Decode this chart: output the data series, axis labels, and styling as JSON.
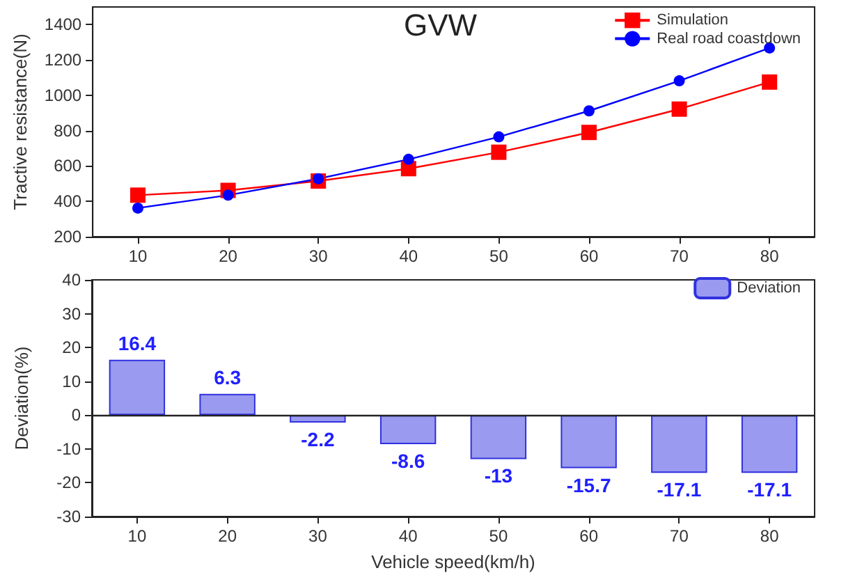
{
  "chart_data": [
    {
      "type": "line",
      "title": "GVW",
      "ylabel": "Tractive resistance(N)",
      "categories": [
        "10",
        "20",
        "30",
        "40",
        "50",
        "60",
        "70",
        "80"
      ],
      "ylim": [
        200,
        1500
      ],
      "yticks": [
        200,
        400,
        600,
        800,
        1000,
        1200,
        1400
      ],
      "grid": false,
      "legend": "top right",
      "line_style": "solid",
      "series": [
        {
          "name": "Simulation",
          "color": "#ff0000",
          "marker": "square",
          "values": [
            435,
            462,
            515,
            585,
            678,
            790,
            922,
            1075
          ]
        },
        {
          "name": "Real road coastdown",
          "color": "#0000ff",
          "marker": "circle",
          "values": [
            362,
            435,
            528,
            638,
            765,
            912,
            1082,
            1268
          ]
        }
      ]
    },
    {
      "type": "bar",
      "xlabel": "Vehicle speed(km/h)",
      "ylabel": "Deviation(%)",
      "categories": [
        "10",
        "20",
        "30",
        "40",
        "50",
        "60",
        "70",
        "80"
      ],
      "ylim": [
        -30,
        40
      ],
      "yticks": [
        -30,
        -20,
        -10,
        0,
        10,
        20,
        30,
        40
      ],
      "grid": false,
      "legend": "top right",
      "data_labels": true,
      "ref_lines": [
        {
          "axis": "y",
          "value": 0,
          "color": "#222222"
        }
      ],
      "series": [
        {
          "name": "Deviation",
          "color": "#9a9af0",
          "values": [
            16.4,
            6.3,
            -2.2,
            -8.6,
            -13,
            -15.7,
            -17.1,
            -17.1
          ]
        }
      ]
    }
  ]
}
